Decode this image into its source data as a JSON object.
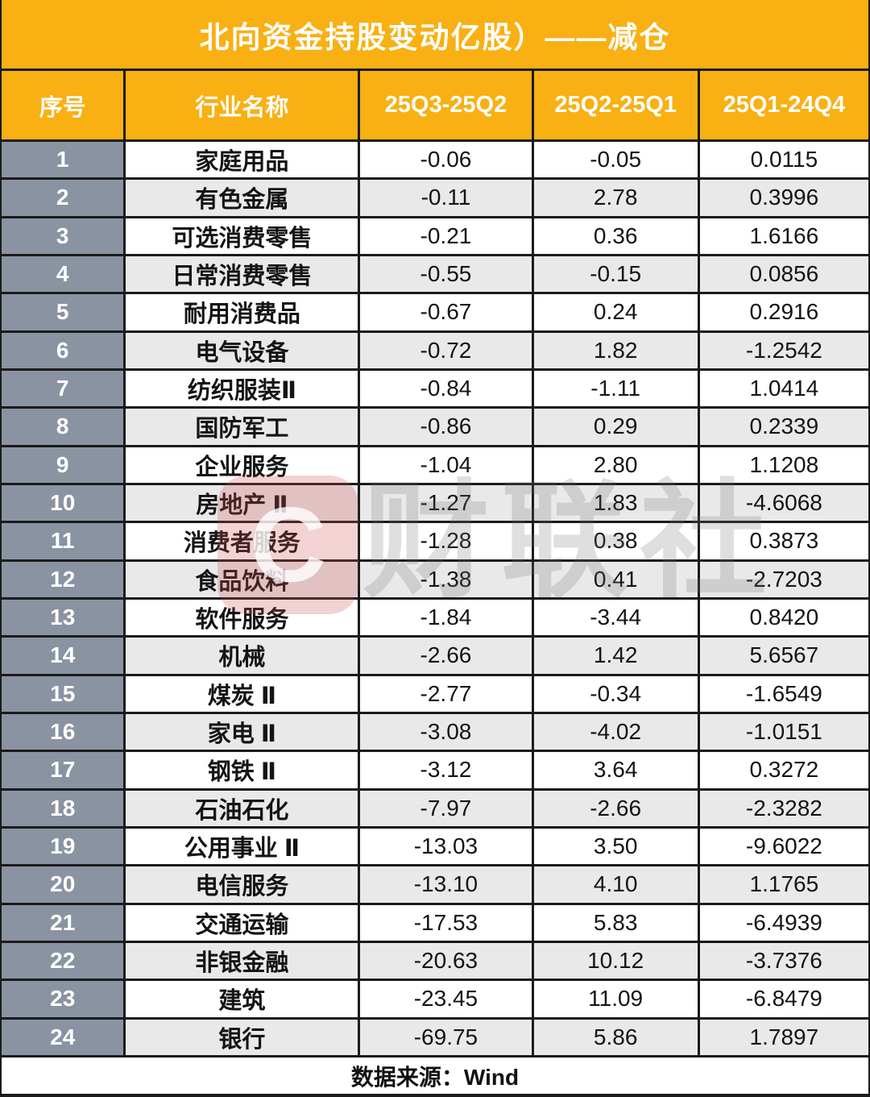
{
  "title": "北向资金持股变动亿股）——减仓",
  "table": {
    "headers": [
      "序号",
      "行业名称",
      "25Q3-25Q2",
      "25Q2-25Q1",
      "25Q1-24Q4"
    ],
    "rows": [
      {
        "index": "1",
        "name": "家庭用品",
        "q3_q2": "-0.06",
        "q2_q1": "-0.05",
        "q1_q4": "0.0115"
      },
      {
        "index": "2",
        "name": "有色金属",
        "q3_q2": "-0.11",
        "q2_q1": "2.78",
        "q1_q4": "0.3996"
      },
      {
        "index": "3",
        "name": "可选消费零售",
        "q3_q2": "-0.21",
        "q2_q1": "0.36",
        "q1_q4": "1.6166"
      },
      {
        "index": "4",
        "name": "日常消费零售",
        "q3_q2": "-0.55",
        "q2_q1": "-0.15",
        "q1_q4": "0.0856"
      },
      {
        "index": "5",
        "name": "耐用消费品",
        "q3_q2": "-0.67",
        "q2_q1": "0.24",
        "q1_q4": "0.2916"
      },
      {
        "index": "6",
        "name": "电气设备",
        "q3_q2": "-0.72",
        "q2_q1": "1.82",
        "q1_q4": "-1.2542"
      },
      {
        "index": "7",
        "name": "纺织服装Ⅱ",
        "q3_q2": "-0.84",
        "q2_q1": "-1.11",
        "q1_q4": "1.0414"
      },
      {
        "index": "8",
        "name": "国防军工",
        "q3_q2": "-0.86",
        "q2_q1": "0.29",
        "q1_q4": "0.2339"
      },
      {
        "index": "9",
        "name": "企业服务",
        "q3_q2": "-1.04",
        "q2_q1": "2.80",
        "q1_q4": "1.1208"
      },
      {
        "index": "10",
        "name": "房地产 Ⅱ",
        "q3_q2": "-1.27",
        "q2_q1": "1.83",
        "q1_q4": "-4.6068"
      },
      {
        "index": "11",
        "name": "消费者服务",
        "q3_q2": "-1.28",
        "q2_q1": "0.38",
        "q1_q4": "0.3873"
      },
      {
        "index": "12",
        "name": "食品饮料",
        "q3_q2": "-1.38",
        "q2_q1": "0.41",
        "q1_q4": "-2.7203"
      },
      {
        "index": "13",
        "name": "软件服务",
        "q3_q2": "-1.84",
        "q2_q1": "-3.44",
        "q1_q4": "0.8420"
      },
      {
        "index": "14",
        "name": "机械",
        "q3_q2": "-2.66",
        "q2_q1": "1.42",
        "q1_q4": "5.6567"
      },
      {
        "index": "15",
        "name": "煤炭 Ⅱ",
        "q3_q2": "-2.77",
        "q2_q1": "-0.34",
        "q1_q4": "-1.6549"
      },
      {
        "index": "16",
        "name": "家电 Ⅱ",
        "q3_q2": "-3.08",
        "q2_q1": "-4.02",
        "q1_q4": "-1.0151"
      },
      {
        "index": "17",
        "name": "钢铁 Ⅱ",
        "q3_q2": "-3.12",
        "q2_q1": "3.64",
        "q1_q4": "0.3272"
      },
      {
        "index": "18",
        "name": "石油石化",
        "q3_q2": "-7.97",
        "q2_q1": "-2.66",
        "q1_q4": "-2.3282"
      },
      {
        "index": "19",
        "name": "公用事业 Ⅱ",
        "q3_q2": "-13.03",
        "q2_q1": "3.50",
        "q1_q4": "-9.6022"
      },
      {
        "index": "20",
        "name": "电信服务",
        "q3_q2": "-13.10",
        "q2_q1": "4.10",
        "q1_q4": "1.1765"
      },
      {
        "index": "21",
        "name": "交通运输",
        "q3_q2": "-17.53",
        "q2_q1": "5.83",
        "q1_q4": "-6.4939"
      },
      {
        "index": "22",
        "name": "非银金融",
        "q3_q2": "-20.63",
        "q2_q1": "10.12",
        "q1_q4": "-3.7376"
      },
      {
        "index": "23",
        "name": "建筑",
        "q3_q2": "-23.45",
        "q2_q1": "11.09",
        "q1_q4": "-6.8479"
      },
      {
        "index": "24",
        "name": "银行",
        "q3_q2": "-69.75",
        "q2_q1": "5.86",
        "q1_q4": "1.7897"
      }
    ]
  },
  "footer": {
    "source_label": "数据来源：Wind"
  },
  "watermark": {
    "logo_letter": "C",
    "text": "财联社"
  },
  "colors": {
    "header_orange": "#F8B013",
    "index_gray": "#8A93A1",
    "row_alt_gray": "#E9E9E9",
    "border_dark": "#1B1B1B"
  },
  "chart_data": {
    "type": "table",
    "title": "北向资金持股变动亿股）——减仓",
    "columns": [
      "序号",
      "行业名称",
      "25Q3-25Q2",
      "25Q2-25Q1",
      "25Q1-24Q4"
    ],
    "rows": [
      [
        1,
        "家庭用品",
        -0.06,
        -0.05,
        0.0115
      ],
      [
        2,
        "有色金属",
        -0.11,
        2.78,
        0.3996
      ],
      [
        3,
        "可选消费零售",
        -0.21,
        0.36,
        1.6166
      ],
      [
        4,
        "日常消费零售",
        -0.55,
        -0.15,
        0.0856
      ],
      [
        5,
        "耐用消费品",
        -0.67,
        0.24,
        0.2916
      ],
      [
        6,
        "电气设备",
        -0.72,
        1.82,
        -1.2542
      ],
      [
        7,
        "纺织服装Ⅱ",
        -0.84,
        -1.11,
        1.0414
      ],
      [
        8,
        "国防军工",
        -0.86,
        0.29,
        0.2339
      ],
      [
        9,
        "企业服务",
        -1.04,
        2.8,
        1.1208
      ],
      [
        10,
        "房地产Ⅱ",
        -1.27,
        1.83,
        -4.6068
      ],
      [
        11,
        "消费者服务",
        -1.28,
        0.38,
        0.3873
      ],
      [
        12,
        "食品饮料",
        -1.38,
        0.41,
        -2.7203
      ],
      [
        13,
        "软件服务",
        -1.84,
        -3.44,
        0.842
      ],
      [
        14,
        "机械",
        -2.66,
        1.42,
        5.6567
      ],
      [
        15,
        "煤炭Ⅱ",
        -2.77,
        -0.34,
        -1.6549
      ],
      [
        16,
        "家电Ⅱ",
        -3.08,
        -4.02,
        -1.0151
      ],
      [
        17,
        "钢铁Ⅱ",
        -3.12,
        3.64,
        0.3272
      ],
      [
        18,
        "石油石化",
        -7.97,
        -2.66,
        -2.3282
      ],
      [
        19,
        "公用事业Ⅱ",
        -13.03,
        3.5,
        -9.6022
      ],
      [
        20,
        "电信服务",
        -13.1,
        4.1,
        1.1765
      ],
      [
        21,
        "交通运输",
        -17.53,
        5.83,
        -6.4939
      ],
      [
        22,
        "非银金融",
        -20.63,
        10.12,
        -3.7376
      ],
      [
        23,
        "建筑",
        -23.45,
        11.09,
        -6.8479
      ],
      [
        24,
        "银行",
        -69.75,
        5.86,
        1.7897
      ]
    ],
    "source": "数据来源：Wind",
    "legend_position": "none",
    "grid": true
  }
}
